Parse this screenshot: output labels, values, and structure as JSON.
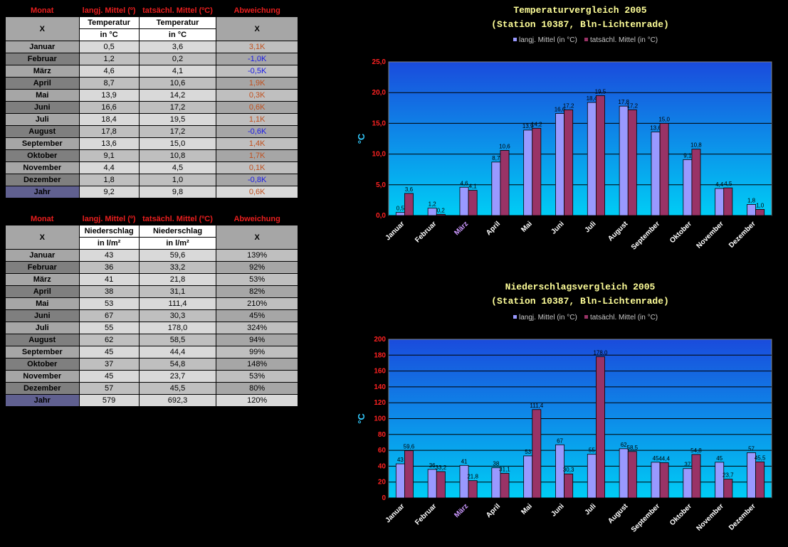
{
  "table1": {
    "headers": [
      "Monat",
      "langj. Mittel (º)",
      "tatsächl. Mittel (ºC)",
      "Abweichung"
    ],
    "x_left": "X",
    "x_right": "X",
    "sub1": [
      "Temperatur",
      "Temperatur"
    ],
    "sub2": [
      "in °C",
      "in °C"
    ],
    "rows": [
      {
        "m": "Januar",
        "a": "0,5",
        "b": "3,6",
        "d": "3,1K",
        "s": "pos"
      },
      {
        "m": "Februar",
        "a": "1,2",
        "b": "0,2",
        "d": "-1,0K",
        "s": "neg"
      },
      {
        "m": "März",
        "a": "4,6",
        "b": "4,1",
        "d": "-0,5K",
        "s": "neg"
      },
      {
        "m": "April",
        "a": "8,7",
        "b": "10,6",
        "d": "1,9K",
        "s": "pos"
      },
      {
        "m": "Mai",
        "a": "13,9",
        "b": "14,2",
        "d": "0,3K",
        "s": "pos"
      },
      {
        "m": "Juni",
        "a": "16,6",
        "b": "17,2",
        "d": "0,6K",
        "s": "pos"
      },
      {
        "m": "Juli",
        "a": "18,4",
        "b": "19,5",
        "d": "1,1K",
        "s": "pos"
      },
      {
        "m": "August",
        "a": "17,8",
        "b": "17,2",
        "d": "-0,6K",
        "s": "neg"
      },
      {
        "m": "September",
        "a": "13,6",
        "b": "15,0",
        "d": "1,4K",
        "s": "pos"
      },
      {
        "m": "Oktober",
        "a": "9,1",
        "b": "10,8",
        "d": "1,7K",
        "s": "pos"
      },
      {
        "m": "November",
        "a": "4,4",
        "b": "4,5",
        "d": "0,1K",
        "s": "pos"
      },
      {
        "m": "Dezember",
        "a": "1,8",
        "b": "1,0",
        "d": "-0,8K",
        "s": "neg"
      },
      {
        "m": "Jahr",
        "a": "9,2",
        "b": "9,8",
        "d": "0,6K",
        "s": "pos"
      }
    ]
  },
  "table2": {
    "headers": [
      "Monat",
      "langj. Mittel (º)",
      "tatsächl. Mittel (ºC)",
      "Abweichung"
    ],
    "x_left": "X",
    "x_right": "X",
    "sub1": [
      "Niederschlag",
      "Niederschlag"
    ],
    "sub2": [
      "in l/m²",
      "in l/m²"
    ],
    "rows": [
      {
        "m": "Januar",
        "a": "43",
        "b": "59,6",
        "d": "139%"
      },
      {
        "m": "Februar",
        "a": "36",
        "b": "33,2",
        "d": "92%"
      },
      {
        "m": "März",
        "a": "41",
        "b": "21,8",
        "d": "53%"
      },
      {
        "m": "April",
        "a": "38",
        "b": "31,1",
        "d": "82%"
      },
      {
        "m": "Mai",
        "a": "53",
        "b": "111,4",
        "d": "210%"
      },
      {
        "m": "Juni",
        "a": "67",
        "b": "30,3",
        "d": "45%"
      },
      {
        "m": "Juli",
        "a": "55",
        "b": "178,0",
        "d": "324%"
      },
      {
        "m": "August",
        "a": "62",
        "b": "58,5",
        "d": "94%"
      },
      {
        "m": "September",
        "a": "45",
        "b": "44,4",
        "d": "99%"
      },
      {
        "m": "Oktober",
        "a": "37",
        "b": "54,8",
        "d": "148%"
      },
      {
        "m": "November",
        "a": "45",
        "b": "23,7",
        "d": "53%"
      },
      {
        "m": "Dezember",
        "a": "57",
        "b": "45,5",
        "d": "80%"
      },
      {
        "m": "Jahr",
        "a": "579",
        "b": "692,3",
        "d": "120%"
      }
    ]
  },
  "chart_data": [
    {
      "type": "bar",
      "title": "Temperaturvergleich 2005",
      "subtitle": "(Station 10387, Bln-Lichtenrade)",
      "ylabel": "°C",
      "ylim": [
        0,
        25
      ],
      "yticks": [
        "0,0",
        "5,0",
        "10,0",
        "15,0",
        "20,0",
        "25,0"
      ],
      "categories": [
        "Januar",
        "Februar",
        "März",
        "April",
        "Mai",
        "Juni",
        "Juli",
        "August",
        "September",
        "Oktober",
        "November",
        "Dezember"
      ],
      "series": [
        {
          "name": "langj. Mittel (in °C)",
          "color": "#9999ff",
          "values": [
            0.5,
            1.2,
            4.6,
            8.7,
            13.9,
            16.6,
            18.4,
            17.8,
            13.6,
            9.1,
            4.4,
            1.8
          ],
          "labels": [
            "0,5",
            "1,2",
            "4,6",
            "8,7",
            "13,9",
            "16,6",
            "18,4",
            "17,8",
            "13,6",
            "9,1",
            "4,4",
            "1,8"
          ]
        },
        {
          "name": "tatsächl. Mittel (in °C)",
          "color": "#993366",
          "values": [
            3.6,
            0.2,
            4.1,
            10.6,
            14.2,
            17.2,
            19.5,
            17.2,
            15.0,
            10.8,
            4.5,
            1.0
          ],
          "labels": [
            "3,6",
            "0,2",
            "4,1",
            "10,6",
            "14,2",
            "17,2",
            "19,5",
            "17,2",
            "15,0",
            "10,8",
            "4,5",
            "1,0"
          ]
        }
      ],
      "legend": "top",
      "grid": true
    },
    {
      "type": "bar",
      "title": "Niederschlagsvergleich 2005",
      "subtitle": "(Station 10387, Bln-Lichtenrade)",
      "ylabel": "°C",
      "ylim": [
        0,
        200
      ],
      "yticks": [
        "0",
        "20",
        "40",
        "60",
        "80",
        "100",
        "120",
        "140",
        "160",
        "180",
        "200"
      ],
      "categories": [
        "Januar",
        "Februar",
        "März",
        "April",
        "Mai",
        "Juni",
        "Juli",
        "August",
        "September",
        "Oktober",
        "November",
        "Dezember"
      ],
      "series": [
        {
          "name": "langj. Mittel (in °C)",
          "color": "#9999ff",
          "values": [
            43,
            36,
            41,
            38,
            53,
            67,
            55,
            62,
            45,
            37,
            45,
            57
          ],
          "labels": [
            "43",
            "36",
            "41",
            "38",
            "53",
            "67",
            "55",
            "62",
            "45",
            "37",
            "45",
            "57"
          ]
        },
        {
          "name": "tatsächl. Mittel (in °C)",
          "color": "#993366",
          "values": [
            59.6,
            33.2,
            21.8,
            31.1,
            111.4,
            30.3,
            178.0,
            58.5,
            44.4,
            54.8,
            23.7,
            45.5
          ],
          "labels": [
            "59,6",
            "33,2",
            "21,8",
            "31,1",
            "111,4",
            "30,3",
            "178,0",
            "58,5",
            "44,4",
            "54,8",
            "23,7",
            "45,5"
          ]
        }
      ],
      "legend": "top",
      "grid": true
    }
  ]
}
